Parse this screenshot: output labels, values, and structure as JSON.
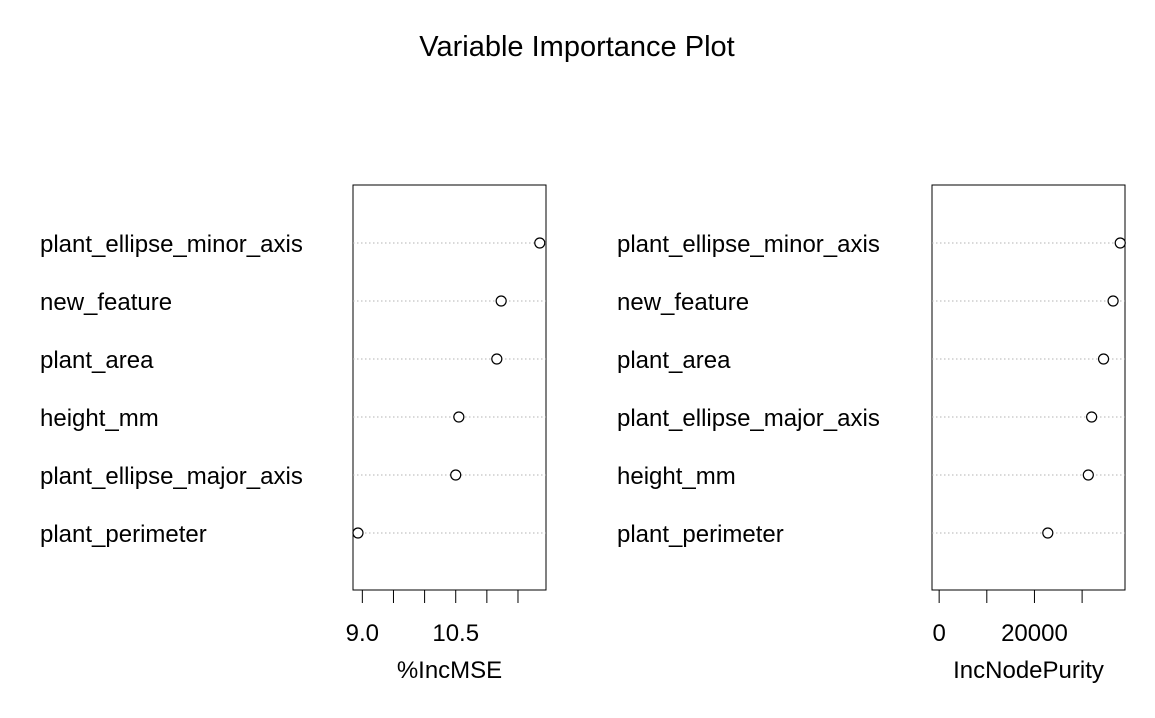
{
  "title": "Variable Importance Plot",
  "chart_data": [
    {
      "type": "dotchart",
      "xlabel": "%IncMSE",
      "xlim": [
        8.85,
        11.95
      ],
      "ticks": [
        9.0,
        9.5,
        10.0,
        10.5,
        11.0,
        11.5
      ],
      "tick_labels": [
        "9.0",
        "",
        "",
        "10.5",
        "",
        ""
      ],
      "variables": [
        "plant_ellipse_minor_axis",
        "new_feature",
        "plant_area",
        "height_mm",
        "plant_ellipse_major_axis",
        "plant_perimeter"
      ],
      "values": [
        11.85,
        11.23,
        11.16,
        10.55,
        10.5,
        8.93
      ]
    },
    {
      "type": "dotchart",
      "xlabel": "IncNodePurity",
      "xlim": [
        -1500,
        39000
      ],
      "ticks": [
        0,
        10000,
        20000,
        30000
      ],
      "tick_labels": [
        "0",
        "",
        "20000",
        ""
      ],
      "variables": [
        "plant_ellipse_minor_axis",
        "new_feature",
        "plant_area",
        "plant_ellipse_major_axis",
        "height_mm",
        "plant_perimeter"
      ],
      "values": [
        38000,
        36500,
        34500,
        32000,
        31300,
        22800
      ]
    }
  ]
}
